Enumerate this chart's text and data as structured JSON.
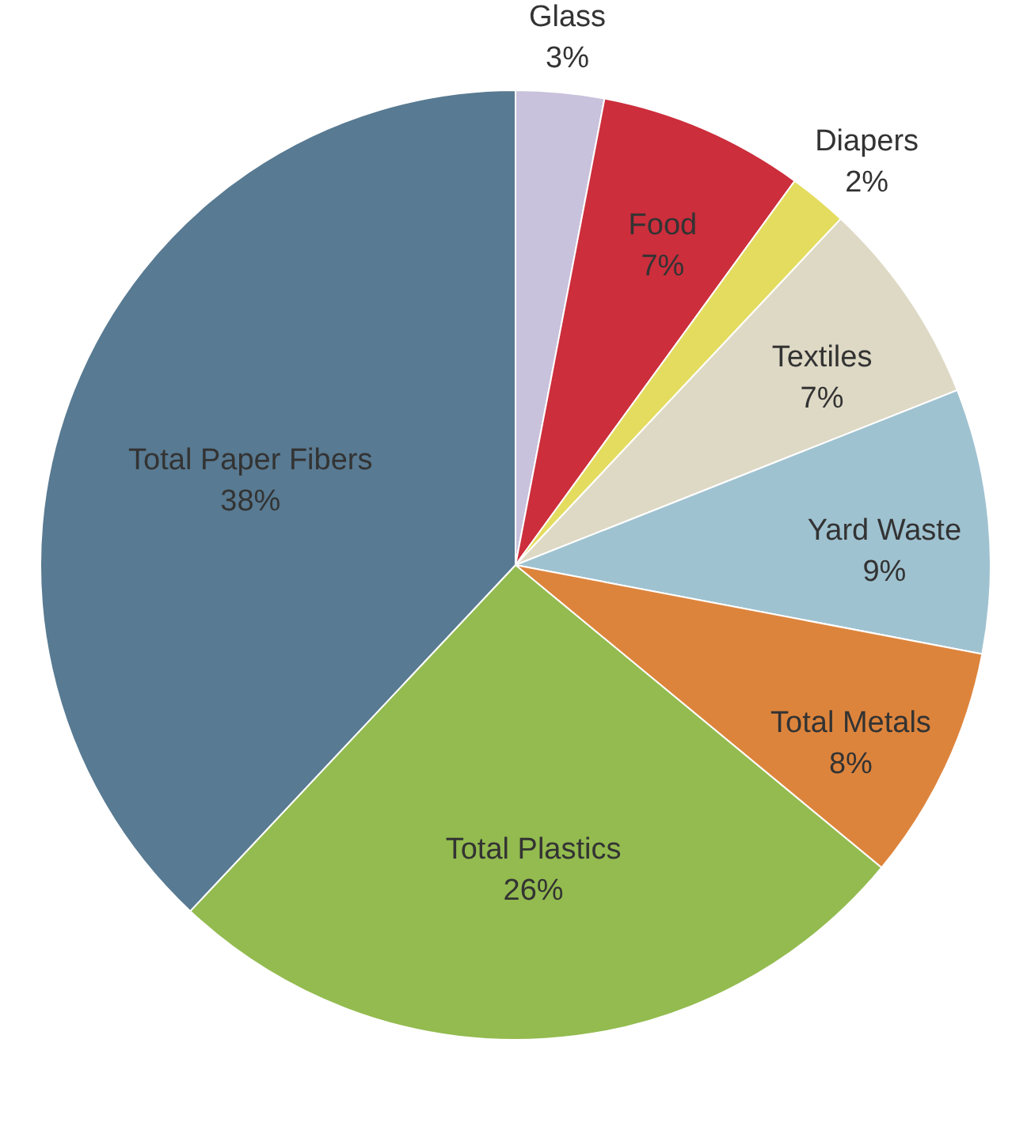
{
  "chart_data": {
    "type": "pie",
    "categories": [
      "Glass",
      "Food",
      "Diapers",
      "Textiles",
      "Yard Waste",
      "Total Metals",
      "Total Plastics",
      "Total Paper Fibers"
    ],
    "values": [
      3,
      7,
      2,
      7,
      9,
      8,
      26,
      38
    ],
    "value_labels": [
      "3%",
      "7%",
      "2%",
      "7%",
      "9%",
      "8%",
      "26%",
      "38%"
    ],
    "colors": [
      "#c9c2dc",
      "#cc2e3c",
      "#e3dc5f",
      "#ded9c5",
      "#9fc2d0",
      "#dd843c",
      "#93bb4f",
      "#587a92"
    ]
  }
}
